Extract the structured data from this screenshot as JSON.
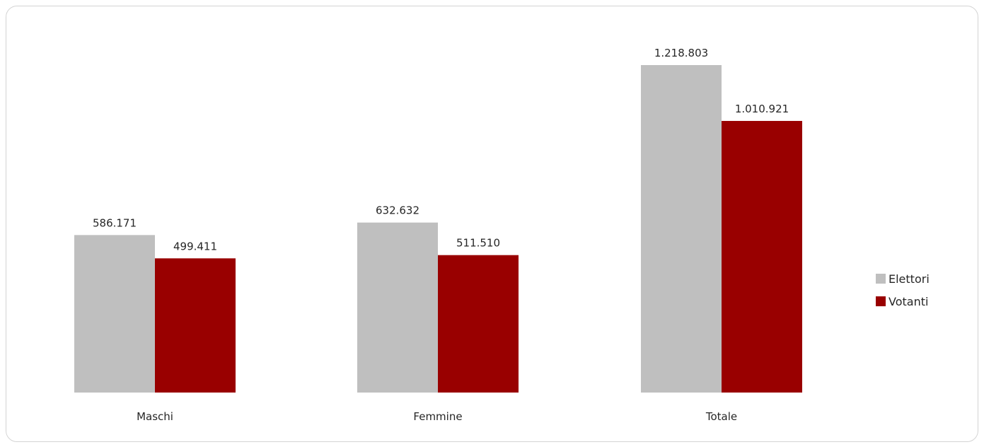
{
  "chart_data": {
    "type": "bar",
    "title": "",
    "xlabel": "",
    "ylabel": "",
    "categories": [
      "Maschi",
      "Femmine",
      "Totale"
    ],
    "series": [
      {
        "name": "Elettori",
        "color": "#bfbfbf",
        "values": [
          586171,
          632632,
          1218803
        ],
        "labels": [
          "586.171",
          "632.632",
          "1.218.803"
        ]
      },
      {
        "name": "Votanti",
        "color": "#990000",
        "values": [
          499411,
          511510,
          1010921
        ],
        "labels": [
          "499.411",
          "511.510",
          "1.010.921"
        ]
      }
    ],
    "ylim": [
      0,
      1218803
    ],
    "grid": false,
    "legend": "right"
  }
}
